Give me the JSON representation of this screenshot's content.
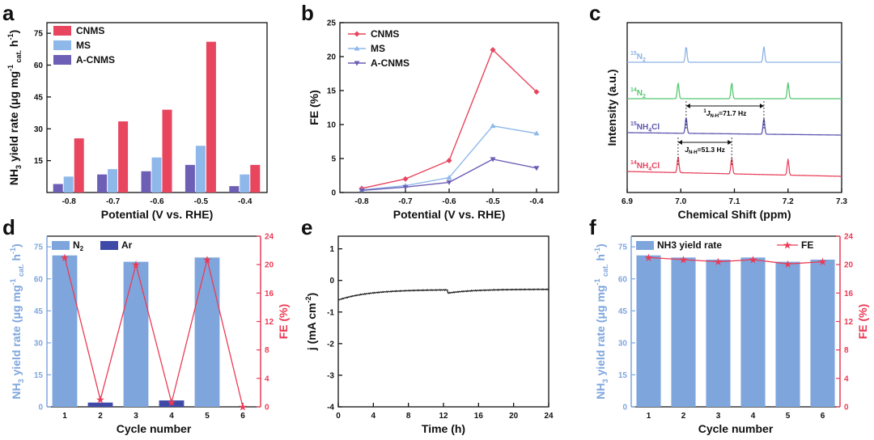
{
  "colors": {
    "cnms": "#e8455e",
    "ms": "#8fb8ea",
    "acnms": "#6d5fb5",
    "bar_blue": "#7ea6dd",
    "ar": "#3f4aa8",
    "fe_red": "#ec3a55",
    "n15": "#8db3e2",
    "n14": "#55c870",
    "nh15": "#5e58b0",
    "nh14": "#e8455e",
    "black": "#222222"
  },
  "chart_data": [
    {
      "panel": "a",
      "type": "bar",
      "categories": [
        "-0.8",
        "-0.7",
        "-0.6",
        "-0.5",
        "-0.4"
      ],
      "series": [
        {
          "name": "A-CNMS",
          "values": [
            4,
            8.5,
            10,
            13,
            3
          ]
        },
        {
          "name": "MS",
          "values": [
            7.5,
            11,
            16.5,
            22,
            8.5
          ]
        },
        {
          "name": "CNMS",
          "values": [
            25.5,
            33.5,
            39,
            71,
            13
          ]
        }
      ],
      "legend": [
        "CNMS",
        "MS",
        "A-CNMS"
      ],
      "legend_position": "top-left",
      "xlabel": "Potential (V vs. RHE)",
      "ylabel": "NH3 yield rate (μg mg-1 cat. h-1)",
      "ylim": [
        0,
        80
      ],
      "yticks": [
        "15",
        "30",
        "45",
        "60",
        "75"
      ]
    },
    {
      "panel": "b",
      "type": "line",
      "x": [
        -0.8,
        -0.7,
        -0.6,
        -0.5,
        -0.4
      ],
      "xticks": [
        "-0.8",
        "-0.7",
        "-0.6",
        "-0.5",
        "-0.4"
      ],
      "series": [
        {
          "name": "CNMS",
          "values": [
            0.6,
            2,
            4.7,
            21,
            14.8
          ]
        },
        {
          "name": "MS",
          "values": [
            0.4,
            1,
            2.2,
            9.8,
            8.7
          ]
        },
        {
          "name": "A-CNMS",
          "values": [
            0.3,
            0.8,
            1.5,
            4.9,
            3.6
          ]
        }
      ],
      "xlabel": "Potential (V vs. RHE)",
      "ylabel": "FE (%)",
      "xlim": [
        -0.85,
        -0.35
      ],
      "ylim": [
        0,
        25
      ],
      "yticks": [
        "0",
        "5",
        "10",
        "15",
        "20",
        "25"
      ]
    },
    {
      "panel": "c",
      "type": "line",
      "xlabel": "Chemical Shift (ppm)",
      "ylabel": "Intensity (a.u.)",
      "xlim": [
        6.9,
        7.3
      ],
      "xticks": [
        "6.9",
        "7.0",
        "7.1",
        "7.2",
        "7.3"
      ],
      "traces": [
        {
          "label_sup": "15",
          "label_main": "N",
          "label_sub": "2",
          "peaks": [
            7.01,
            7.155
          ]
        },
        {
          "label_sup": "14",
          "label_main": "N",
          "label_sub": "2",
          "peaks": [
            6.995,
            7.095,
            7.2
          ]
        },
        {
          "label_sup": "15",
          "label_main": "NH",
          "label_sub": "4",
          "label_tail": "Cl",
          "peaks": [
            7.01,
            7.155
          ]
        },
        {
          "label_sup": "14",
          "label_main": "NH",
          "label_sub": "4",
          "label_tail": "Cl",
          "peaks": [
            6.995,
            7.095,
            7.2
          ]
        }
      ],
      "annotations": [
        {
          "sup": "1",
          "main": "J",
          "sub": "N-H",
          "tail": "=71.7 Hz",
          "from": 7.01,
          "to": 7.155
        },
        {
          "main": "J",
          "sub": "N-H",
          "tail": "=51.3 Hz",
          "from": 6.995,
          "to": 7.095
        }
      ]
    },
    {
      "panel": "d",
      "type": "bar",
      "categories": [
        "1",
        "2",
        "3",
        "4",
        "5",
        "6"
      ],
      "series": [
        {
          "name": "N2",
          "values": [
            71,
            0,
            68,
            0,
            70,
            0
          ]
        },
        {
          "name": "Ar",
          "values": [
            0,
            2,
            0,
            3,
            0,
            0
          ]
        }
      ],
      "fe": [
        21,
        1,
        20,
        0.6,
        20.7,
        0
      ],
      "legend_n2_main": "N",
      "legend_n2_sub": "2",
      "legend_ar": "Ar",
      "xlabel": "Cycle number",
      "ylabel": "NH3 yield rate (μg mg-1 cat. h-1)",
      "y2label": "FE (%)",
      "ylim": [
        0,
        80
      ],
      "y2lim": [
        0,
        24
      ],
      "yticks": [
        "0",
        "15",
        "30",
        "45",
        "60",
        "75"
      ],
      "y2ticks": [
        "0",
        "4",
        "8",
        "12",
        "16",
        "20",
        "24"
      ]
    },
    {
      "panel": "e",
      "type": "line",
      "xlabel": "Time (h)",
      "ylabel": "j (mA cm-2)",
      "xlim": [
        0,
        24
      ],
      "ylim": [
        -4,
        1.4
      ],
      "xticks": [
        "0",
        "4",
        "8",
        "12",
        "16",
        "20",
        "24"
      ],
      "yticks": [
        "-4",
        "-3",
        "-2",
        "-1",
        "0",
        "1"
      ]
    },
    {
      "panel": "f",
      "type": "bar",
      "categories": [
        "1",
        "2",
        "3",
        "4",
        "5",
        "6"
      ],
      "series": [
        {
          "name": "NH3 yield rate",
          "values": [
            71,
            70,
            69,
            70,
            68,
            69
          ]
        }
      ],
      "fe": [
        21,
        20.7,
        20.4,
        20.7,
        20.1,
        20.4
      ],
      "legend": [
        "NH3 yield rate",
        "FE"
      ],
      "xlabel": "Cycle number",
      "ylabel": "NH3 yield rate (μg mg-1 cat. h-1)",
      "y2label": "FE (%)",
      "ylim": [
        0,
        80
      ],
      "y2lim": [
        0,
        24
      ],
      "yticks": [
        "0",
        "15",
        "30",
        "45",
        "60",
        "75"
      ],
      "y2ticks": [
        "0",
        "4",
        "8",
        "12",
        "16",
        "20",
        "24"
      ]
    }
  ],
  "panel_letters": [
    "a",
    "b",
    "c",
    "d",
    "e",
    "f"
  ]
}
